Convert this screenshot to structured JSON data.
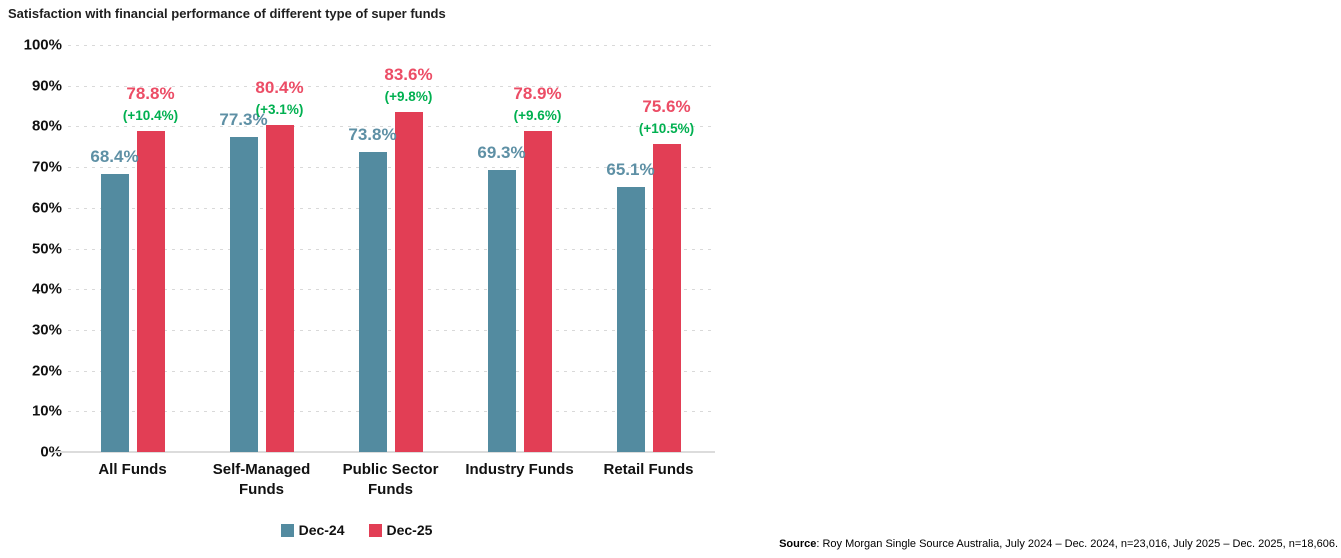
{
  "chart_data": {
    "type": "bar",
    "title": "Satisfaction with financial performance of different type of super funds",
    "categories": [
      "All Funds",
      "Self-Managed Funds",
      "Public Sector Funds",
      "Industry Funds",
      "Retail Funds"
    ],
    "series": [
      {
        "name": "Dec-24",
        "color": "#538BA0",
        "label_color": "#5E90A5",
        "values": [
          68.4,
          77.3,
          73.8,
          69.3,
          65.1
        ],
        "labels": [
          "68.4%",
          "77.3%",
          "73.8%",
          "69.3%",
          "65.1%"
        ]
      },
      {
        "name": "Dec-25",
        "color": "#E23E55",
        "label_color": "#EC4D66",
        "values": [
          78.8,
          80.4,
          83.6,
          78.9,
          75.6
        ],
        "labels": [
          "78.8%",
          "80.4%",
          "83.6%",
          "78.9%",
          "75.6%"
        ]
      }
    ],
    "change_labels": {
      "color": "#00B050",
      "values": [
        "(+10.4%)",
        "(+3.1%)",
        "(+9.8%)",
        "(+9.6%)",
        "(+10.5%)"
      ]
    },
    "ylim": [
      0,
      100
    ],
    "ytick_labels": [
      "0%",
      "10%",
      "20%",
      "30%",
      "40%",
      "50%",
      "60%",
      "70%",
      "80%",
      "90%",
      "100%"
    ],
    "grid": "dashed horizontal",
    "grid_color": "#D9D9D9",
    "legend_position": "bottom"
  },
  "source": {
    "label": "Source",
    "text": ": Roy Morgan Single Source Australia, July 2024 – Dec. 2024, n=23,016, July 2025 – Dec. 2025, n=18,606."
  }
}
